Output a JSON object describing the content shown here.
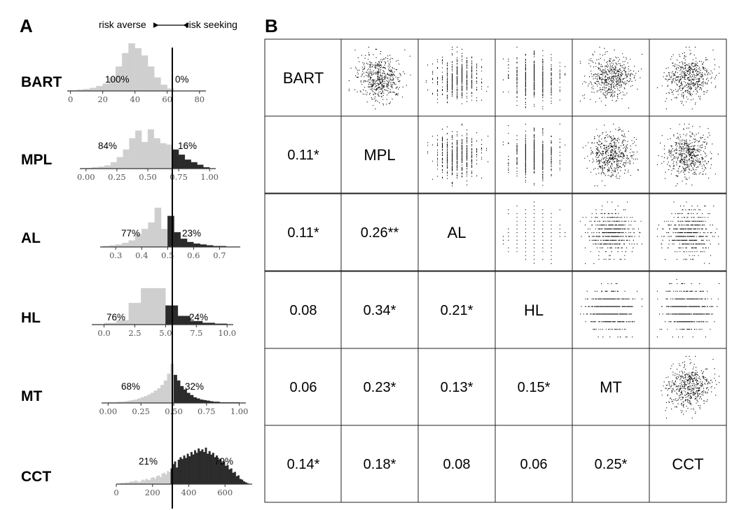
{
  "panel_a_label": "A",
  "panel_b_label": "B",
  "risk_left": "risk averse",
  "risk_right": "risk seeking",
  "chart_data": [
    {
      "type": "histogram",
      "panel": "A",
      "measures": [
        {
          "name": "BART",
          "ticks": [
            "0",
            "20",
            "40",
            "60",
            "80"
          ],
          "tick_values": [
            0,
            20,
            40,
            60,
            80
          ],
          "xlim": [
            -2,
            84
          ],
          "threshold": 64,
          "averse_pct": "100%",
          "seeking_pct": "0%",
          "bin_width": 4,
          "bins_x": [
            0,
            4,
            8,
            12,
            16,
            20,
            24,
            28,
            32,
            36,
            40,
            44,
            48,
            52,
            56,
            60
          ],
          "counts": [
            1,
            2,
            3,
            5,
            8,
            12,
            22,
            40,
            62,
            78,
            70,
            58,
            40,
            22,
            10,
            4
          ]
        },
        {
          "name": "MPL",
          "ticks": [
            "0.00",
            "0.25",
            "0.50",
            "0.75",
            "1.00"
          ],
          "tick_values": [
            0,
            0.25,
            0.5,
            0.75,
            1
          ],
          "xlim": [
            -0.05,
            1.05
          ],
          "threshold": 0.69,
          "averse_pct": "84%",
          "seeking_pct": "16%",
          "bin_width": 0.05,
          "bins_x": [
            0,
            0.05,
            0.1,
            0.15,
            0.2,
            0.25,
            0.3,
            0.35,
            0.4,
            0.45,
            0.5,
            0.55,
            0.6,
            0.65,
            0.7,
            0.75,
            0.8,
            0.85,
            0.9,
            0.95
          ],
          "counts": [
            1,
            2,
            3,
            5,
            10,
            18,
            30,
            48,
            60,
            42,
            62,
            48,
            40,
            38,
            30,
            22,
            14,
            10,
            6,
            2
          ]
        },
        {
          "name": "AL",
          "ticks": [
            "0.3",
            "0.4",
            "0.5",
            "0.6",
            "0.7"
          ],
          "tick_values": [
            0.3,
            0.4,
            0.5,
            0.6,
            0.7
          ],
          "xlim": [
            0.24,
            0.78
          ],
          "threshold": 0.5,
          "averse_pct": "77%",
          "seeking_pct": "23%",
          "bin_width": 0.025,
          "bins_x": [
            0.25,
            0.275,
            0.3,
            0.325,
            0.35,
            0.375,
            0.4,
            0.425,
            0.45,
            0.475,
            0.5,
            0.525,
            0.55,
            0.575,
            0.6,
            0.625,
            0.65,
            0.675,
            0.7
          ],
          "counts": [
            1,
            2,
            3,
            5,
            8,
            16,
            22,
            30,
            48,
            22,
            38,
            18,
            10,
            6,
            4,
            3,
            2,
            1,
            1
          ]
        },
        {
          "name": "HL",
          "ticks": [
            "0.0",
            "2.5",
            "5.0",
            "7.5",
            "10.0"
          ],
          "tick_values": [
            0,
            2.5,
            5,
            7.5,
            10
          ],
          "xlim": [
            -1,
            10.5
          ],
          "threshold": 5,
          "averse_pct": "76%",
          "seeking_pct": "24%",
          "bin_width": 1,
          "bins_x": [
            0,
            1,
            2,
            3,
            4,
            5,
            6,
            7,
            8,
            9
          ],
          "counts": [
            2,
            5,
            25,
            42,
            42,
            22,
            10,
            4,
            2,
            1
          ]
        },
        {
          "name": "MT",
          "ticks": [
            "0.00",
            "0.25",
            "0.50",
            "0.75",
            "1.00"
          ],
          "tick_values": [
            0,
            0.25,
            0.5,
            0.75,
            1
          ],
          "xlim": [
            -0.05,
            1.05
          ],
          "threshold": 0.5,
          "averse_pct": "68%",
          "seeking_pct": "32%",
          "bin_width": 0.025,
          "bins_x": [
            0,
            0.025,
            0.05,
            0.075,
            0.1,
            0.125,
            0.15,
            0.175,
            0.2,
            0.225,
            0.25,
            0.275,
            0.3,
            0.325,
            0.35,
            0.375,
            0.4,
            0.425,
            0.45,
            0.475,
            0.5,
            0.525,
            0.55,
            0.575,
            0.6,
            0.625,
            0.65,
            0.675,
            0.7,
            0.725,
            0.75,
            0.775,
            0.8,
            0.825,
            0.85,
            0.875,
            0.9,
            0.925,
            0.95,
            0.975
          ],
          "counts": [
            1,
            1,
            1,
            2,
            2,
            3,
            4,
            5,
            6,
            8,
            10,
            12,
            15,
            18,
            22,
            26,
            32,
            40,
            52,
            70,
            50,
            40,
            30,
            24,
            18,
            14,
            10,
            8,
            6,
            5,
            4,
            3,
            2,
            2,
            1,
            1,
            1,
            1,
            1,
            1
          ]
        },
        {
          "name": "CCT",
          "ticks": [
            "0",
            "200",
            "400",
            "600"
          ],
          "tick_values": [
            0,
            200,
            400,
            600
          ],
          "xlim": [
            0,
            750
          ],
          "threshold": 300,
          "averse_pct": "21%",
          "seeking_pct": "79%",
          "bin_width": 10,
          "bins_x": [
            20,
            30,
            40,
            50,
            60,
            70,
            80,
            90,
            100,
            110,
            120,
            130,
            140,
            150,
            160,
            170,
            180,
            190,
            200,
            210,
            220,
            230,
            240,
            250,
            260,
            270,
            280,
            290,
            300,
            310,
            320,
            330,
            340,
            350,
            360,
            370,
            380,
            390,
            400,
            410,
            420,
            430,
            440,
            450,
            460,
            470,
            480,
            490,
            500,
            510,
            520,
            530,
            540,
            550,
            560,
            570,
            580,
            590,
            600,
            610,
            620,
            630,
            640,
            650,
            660,
            670,
            680,
            690,
            700,
            710,
            720
          ],
          "counts": [
            2,
            3,
            2,
            4,
            3,
            5,
            6,
            5,
            8,
            7,
            4,
            6,
            10,
            8,
            12,
            10,
            9,
            14,
            16,
            12,
            18,
            20,
            16,
            24,
            26,
            22,
            30,
            28,
            36,
            46,
            52,
            38,
            56,
            62,
            58,
            66,
            60,
            70,
            64,
            74,
            68,
            78,
            72,
            82,
            76,
            80,
            74,
            84,
            70,
            76,
            68,
            72,
            62,
            66,
            56,
            58,
            50,
            52,
            42,
            44,
            34,
            36,
            26,
            28,
            18,
            20,
            12,
            10,
            6,
            4,
            2
          ]
        }
      ]
    },
    {
      "type": "correlation-matrix",
      "panel": "B",
      "variables": [
        "BART",
        "MPL",
        "AL",
        "HL",
        "MT",
        "CCT"
      ],
      "lower_triangle": [
        {
          "row": "MPL",
          "col": "BART",
          "label": "0.11*"
        },
        {
          "row": "AL",
          "col": "BART",
          "label": "0.11*"
        },
        {
          "row": "AL",
          "col": "MPL",
          "label": "0.26**"
        },
        {
          "row": "HL",
          "col": "BART",
          "label": "0.08"
        },
        {
          "row": "HL",
          "col": "MPL",
          "label": "0.34*"
        },
        {
          "row": "HL",
          "col": "AL",
          "label": "0.21*"
        },
        {
          "row": "MT",
          "col": "BART",
          "label": "0.06"
        },
        {
          "row": "MT",
          "col": "MPL",
          "label": "0.23*"
        },
        {
          "row": "MT",
          "col": "AL",
          "label": "0.13*"
        },
        {
          "row": "MT",
          "col": "HL",
          "label": "0.15*"
        },
        {
          "row": "CCT",
          "col": "BART",
          "label": "0.14*"
        },
        {
          "row": "CCT",
          "col": "MPL",
          "label": "0.18*"
        },
        {
          "row": "CCT",
          "col": "AL",
          "label": "0.08"
        },
        {
          "row": "CCT",
          "col": "HL",
          "label": "0.06"
        },
        {
          "row": "CCT",
          "col": "MT",
          "label": "0.25*"
        }
      ],
      "upper_triangle": "scatterplots"
    }
  ]
}
